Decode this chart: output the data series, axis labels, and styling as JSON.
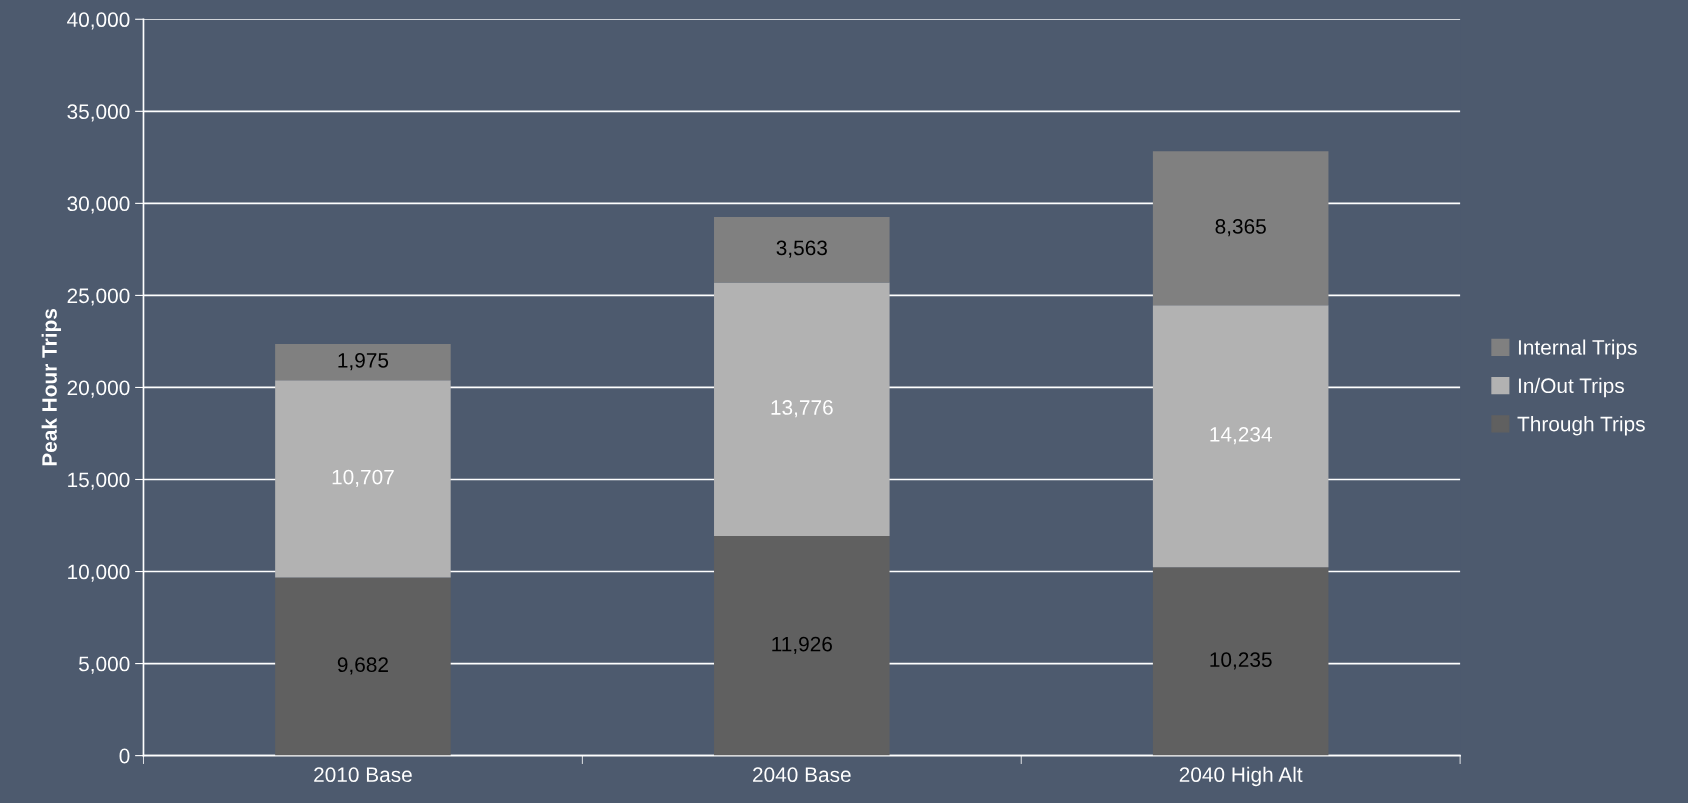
{
  "chart_data": {
    "type": "bar",
    "stacked": true,
    "ylabel": "Peak Hour Trips",
    "categories": [
      "2010 Base",
      "2040 Base",
      "2040 High Alt"
    ],
    "series": [
      {
        "name": "Through Trips",
        "color": "#606060",
        "values": [
          9682,
          11926,
          10235
        ],
        "value_labels": [
          "9,682",
          "11,926",
          "10,235"
        ]
      },
      {
        "name": "In/Out Trips",
        "color": "#b2b2b2",
        "values": [
          10707,
          13776,
          14234
        ],
        "value_labels": [
          "10,707",
          "13,776",
          "14,234"
        ]
      },
      {
        "name": "Internal Trips",
        "color": "#808080",
        "values": [
          1975,
          3563,
          8365
        ],
        "value_labels": [
          "1,975",
          "3,563",
          "8,365"
        ]
      }
    ],
    "ylim": [
      0,
      40000
    ],
    "yticks": [
      {
        "value": 0,
        "label": "0"
      },
      {
        "value": 5000,
        "label": "5,000"
      },
      {
        "value": 10000,
        "label": "10,000"
      },
      {
        "value": 15000,
        "label": "15,000"
      },
      {
        "value": 20000,
        "label": "20,000"
      },
      {
        "value": 25000,
        "label": "25,000"
      },
      {
        "value": 30000,
        "label": "30,000"
      },
      {
        "value": 35000,
        "label": "35,000"
      },
      {
        "value": 40000,
        "label": "40,000"
      }
    ],
    "grid": "y",
    "legend": "right"
  }
}
